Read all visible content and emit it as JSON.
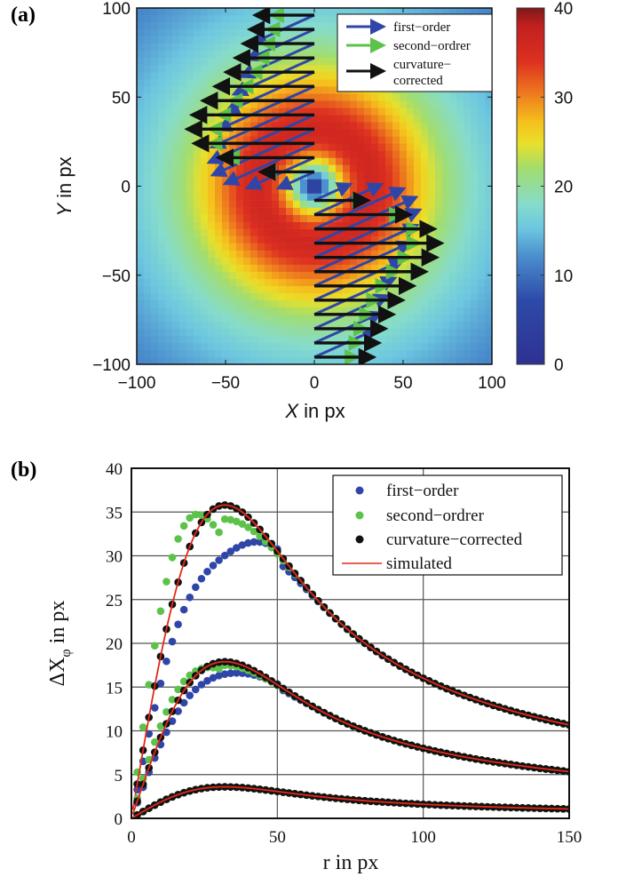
{
  "chart_data": [
    {
      "panel_label": "(a)",
      "type": "heatmap",
      "title": "",
      "xlabel_italic": "X",
      "xlabel_rest": " in px",
      "ylabel_italic": "Y",
      "ylabel_rest": " in px",
      "xlim": [
        -100,
        100
      ],
      "ylim": [
        -100,
        100
      ],
      "xticks": [
        -100,
        -50,
        0,
        50,
        100
      ],
      "yticks": [
        -100,
        -50,
        0,
        50,
        100
      ],
      "xtick_labels": [
        "−100",
        "−50",
        "0",
        "50",
        "100"
      ],
      "ytick_labels": [
        "−100",
        "−50",
        "0",
        "50",
        "100"
      ],
      "heatmap": {
        "description": "vortex displacement magnitude field, ring-shaped maximum around r≈32 px",
        "peak_value": 36,
        "peak_radius": 32,
        "center_value": 2,
        "edge_value": 14
      },
      "colorbar": {
        "range": [
          0,
          40
        ],
        "ticks": [
          0,
          10,
          20,
          30,
          40
        ],
        "colormap": "jet"
      },
      "quiver": {
        "x_origin": 0,
        "y_start": -96,
        "y_step": 8,
        "y_count": 25,
        "series": [
          {
            "name": "first-order",
            "color": "#2f46a8"
          },
          {
            "name": "second-ordrer",
            "color": "#5cc24a"
          },
          {
            "name": "curvature-corrected",
            "color": "#111111"
          }
        ]
      },
      "legend": {
        "placement": "top-right",
        "entries": [
          {
            "label": "first−order",
            "color": "#2f46a8"
          },
          {
            "label": "second−ordrer",
            "color": "#5cc24a"
          },
          {
            "label_line1": "curvature−",
            "label_line2": "corrected",
            "color": "#111111"
          }
        ]
      }
    },
    {
      "panel_label": "(b)",
      "type": "scatter",
      "title": "",
      "xlabel": "r in px",
      "ylabel_main": "ΔX",
      "ylabel_sub": "φ",
      "ylabel_rest": " in px",
      "xlim": [
        0,
        150
      ],
      "ylim": [
        0,
        40
      ],
      "xticks": [
        0,
        50,
        100,
        150
      ],
      "yticks": [
        0,
        5,
        10,
        15,
        20,
        25,
        30,
        35,
        40
      ],
      "grid": true,
      "legend": {
        "placement": "top-right",
        "entries": [
          {
            "label": "first−order",
            "color": "#2f46a8",
            "marker": "dot"
          },
          {
            "label": "second−ordrer",
            "color": "#5cc24a",
            "marker": "dot"
          },
          {
            "label": "curvature−corrected",
            "color": "#111111",
            "marker": "dot"
          },
          {
            "label": "simulated",
            "color": "#e02a1a",
            "marker": "line"
          }
        ]
      },
      "simulated_profiles": [
        {
          "name": "amplitude-high",
          "peak": 35.8,
          "peak_r": 32
        },
        {
          "name": "amplitude-mid",
          "peak": 17.9,
          "peak_r": 32
        },
        {
          "name": "amplitude-low",
          "peak": 3.6,
          "peak_r": 32
        }
      ],
      "series_notes": {
        "r_values": "2 to 150 step 2",
        "first-order": "underestimates near peak; peaks ≈30.3 at r≈40 (high), ≈17.2 (mid)",
        "second-ordrer": "overestimates at small r; peaks ≈34.2 at r≈30 (high), ≈17.6 (mid)",
        "curvature-corrected": "follows simulated curve"
      },
      "sample_values": {
        "r": [
          10,
          20,
          32,
          50,
          100,
          150
        ],
        "simulated_high": [
          15.5,
          29.5,
          35.8,
          30.0,
          16.0,
          10.5
        ],
        "simulated_mid": [
          7.8,
          14.8,
          17.9,
          15.0,
          8.0,
          5.2
        ],
        "simulated_low": [
          1.6,
          3.0,
          3.6,
          3.0,
          1.6,
          1.0
        ],
        "first_order_high": [
          8.5,
          20.5,
          29.0,
          30.0,
          16.0,
          10.5
        ],
        "second_order_high": [
          23.6,
          32.5,
          34.2,
          29.6,
          16.0,
          10.5
        ]
      }
    }
  ]
}
